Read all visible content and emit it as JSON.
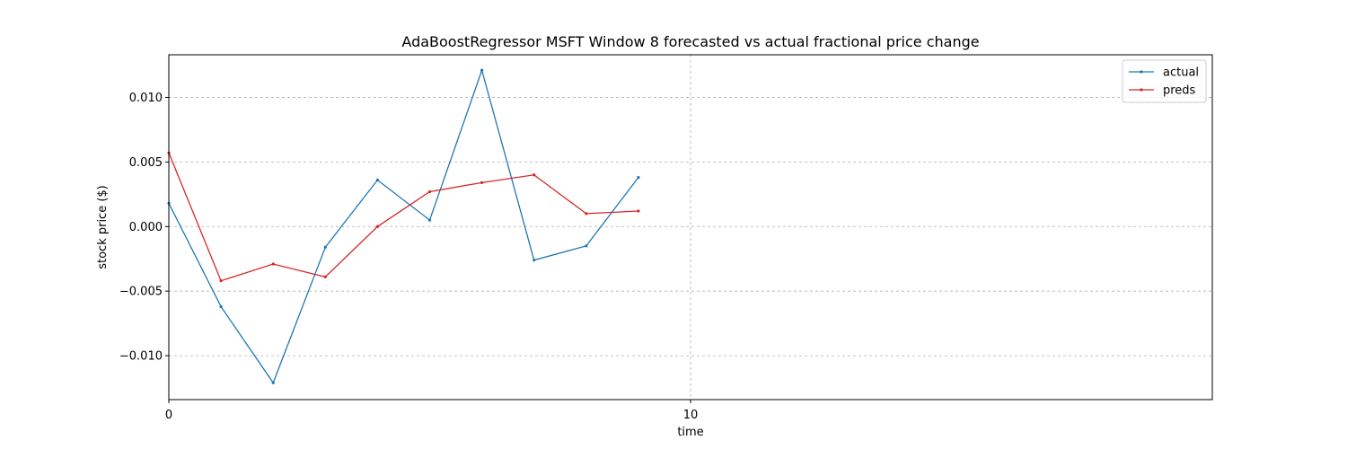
{
  "chart_data": {
    "type": "line",
    "title": "AdaBoostRegressor MSFT Window 8 forecasted vs actual fractional price change",
    "xlabel": "time",
    "ylabel": "stock price ($)",
    "xlim": [
      0,
      20
    ],
    "ylim": [
      -0.0134,
      0.0133
    ],
    "xticks": [
      0,
      10
    ],
    "xtick_labels": [
      "0",
      "10"
    ],
    "yticks": [
      -0.01,
      -0.005,
      0.0,
      0.005,
      0.01
    ],
    "ytick_labels": [
      "−0.010",
      "−0.005",
      "0.000",
      "0.005",
      "0.010"
    ],
    "grid": true,
    "legend_position": "top-right",
    "x": [
      0,
      1,
      2,
      3,
      4,
      5,
      6,
      7,
      8,
      9
    ],
    "series": [
      {
        "name": "actual",
        "color": "#1f77b4",
        "values": [
          0.0018,
          -0.0062,
          -0.0121,
          -0.0016,
          0.0036,
          0.0005,
          0.0121,
          -0.0026,
          -0.0015,
          0.0038
        ]
      },
      {
        "name": "preds",
        "color": "#d62728",
        "values": [
          0.0057,
          -0.0042,
          -0.0029,
          -0.0039,
          0.0,
          0.0027,
          0.0034,
          0.004,
          0.001,
          0.0012
        ]
      }
    ]
  }
}
